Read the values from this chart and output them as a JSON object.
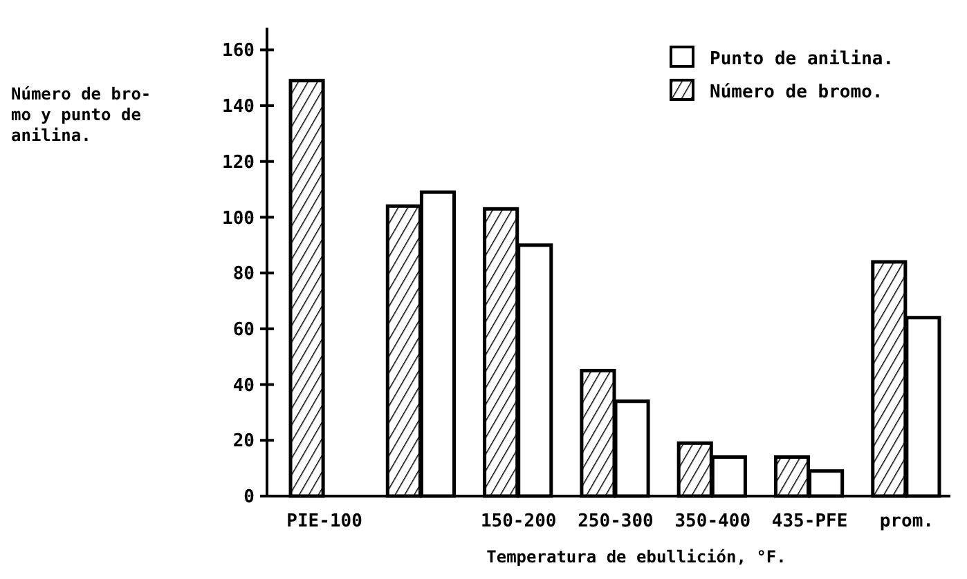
{
  "chart_data": {
    "type": "bar",
    "xlabel": "Temperatura de ebullición, °F.",
    "ylabel": "Número de bro-\nmo y punto de\nanilina.",
    "categories": [
      "PIE-100",
      null,
      "150-200",
      "250-300",
      "350-400",
      "435-PFE",
      "prom."
    ],
    "series": [
      {
        "name": "Número de bromo.",
        "values": [
          149,
          104,
          103,
          45,
          19,
          14,
          84
        ]
      },
      {
        "name": "Punto de anilina.",
        "values": [
          null,
          109,
          90,
          34,
          14,
          9,
          64
        ]
      }
    ],
    "ylim": [
      0,
      168
    ],
    "yticks": [
      0,
      20,
      40,
      60,
      80,
      100,
      120,
      140,
      160
    ],
    "legend": "top right",
    "grid": false
  }
}
